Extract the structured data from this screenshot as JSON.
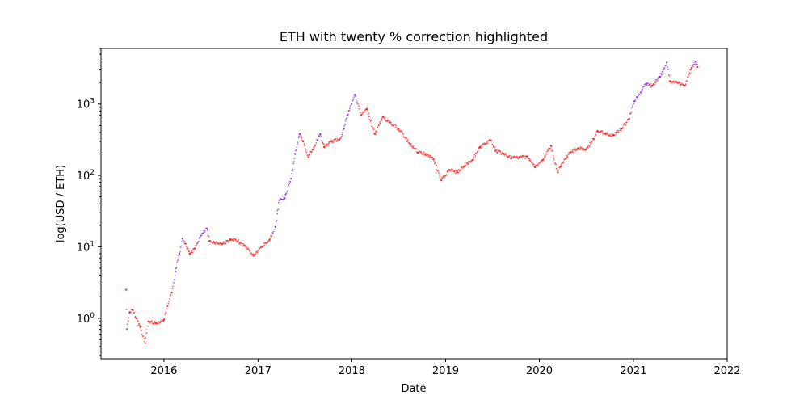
{
  "chart_data": {
    "type": "scatter",
    "title": "ETH with twenty % correction highlighted",
    "xlabel": "Date",
    "ylabel": "log(USD / ETH)",
    "yscale": "log",
    "xlim": [
      "2015-05-01",
      "2022-01-01"
    ],
    "ylim": [
      0.27,
      6000
    ],
    "x_ticks": [
      "2016",
      "2017",
      "2018",
      "2019",
      "2020",
      "2021",
      "2022"
    ],
    "y_ticks": [
      {
        "label": "10",
        "exp": "0",
        "value": 1
      },
      {
        "label": "10",
        "exp": "1",
        "value": 10
      },
      {
        "label": "10",
        "exp": "2",
        "value": 100
      },
      {
        "label": "10",
        "exp": "3",
        "value": 1000
      }
    ],
    "grid": false,
    "legend": "none",
    "colors": {
      "normal": "#ff2020",
      "correction": "#8a2be2"
    },
    "series": [
      {
        "points": [
          [
            "2015-08-07",
            2.5,
            0
          ],
          [
            "2015-08-10",
            0.7,
            0
          ],
          [
            "2015-08-20",
            1.2,
            0
          ],
          [
            "2015-09-01",
            1.3,
            0
          ],
          [
            "2015-09-15",
            1.0,
            0
          ],
          [
            "2015-10-01",
            0.75,
            0
          ],
          [
            "2015-10-20",
            0.45,
            0
          ],
          [
            "2015-11-01",
            0.9,
            0
          ],
          [
            "2015-12-01",
            0.85,
            0
          ],
          [
            "2016-01-01",
            0.95,
            0
          ],
          [
            "2016-02-01",
            2.3,
            0
          ],
          [
            "2016-02-15",
            4.5,
            1
          ],
          [
            "2016-03-01",
            8.0,
            1
          ],
          [
            "2016-03-13",
            13.0,
            1
          ],
          [
            "2016-03-25",
            11.0,
            0
          ],
          [
            "2016-04-10",
            8.0,
            0
          ],
          [
            "2016-05-01",
            9.5,
            0
          ],
          [
            "2016-05-20",
            13.5,
            1
          ],
          [
            "2016-06-16",
            18.0,
            1
          ],
          [
            "2016-06-25",
            12.0,
            0
          ],
          [
            "2016-07-15",
            11.5,
            0
          ],
          [
            "2016-08-15",
            11.0,
            0
          ],
          [
            "2016-09-15",
            12.5,
            0
          ],
          [
            "2016-10-15",
            12.0,
            0
          ],
          [
            "2016-11-15",
            10.0,
            0
          ],
          [
            "2016-12-15",
            7.5,
            0
          ],
          [
            "2017-01-15",
            10.0,
            0
          ],
          [
            "2017-02-15",
            12.5,
            0
          ],
          [
            "2017-03-10",
            19.0,
            1
          ],
          [
            "2017-03-25",
            45.0,
            1
          ],
          [
            "2017-04-15",
            48.0,
            1
          ],
          [
            "2017-05-10",
            90.0,
            1
          ],
          [
            "2017-05-25",
            200.0,
            1
          ],
          [
            "2017-06-12",
            380.0,
            1
          ],
          [
            "2017-06-25",
            300.0,
            0
          ],
          [
            "2017-07-16",
            180.0,
            0
          ],
          [
            "2017-08-01",
            230.0,
            0
          ],
          [
            "2017-08-31",
            380.0,
            1
          ],
          [
            "2017-09-15",
            250.0,
            0
          ],
          [
            "2017-10-15",
            300.0,
            0
          ],
          [
            "2017-11-15",
            320.0,
            0
          ],
          [
            "2017-12-01",
            450.0,
            1
          ],
          [
            "2017-12-15",
            700.0,
            1
          ],
          [
            "2018-01-13",
            1350.0,
            1
          ],
          [
            "2018-02-06",
            700.0,
            0
          ],
          [
            "2018-03-01",
            850.0,
            0
          ],
          [
            "2018-04-01",
            380.0,
            0
          ],
          [
            "2018-05-01",
            650.0,
            0
          ],
          [
            "2018-06-01",
            550.0,
            0
          ],
          [
            "2018-07-01",
            450.0,
            0
          ],
          [
            "2018-08-15",
            280.0,
            0
          ],
          [
            "2018-09-15",
            210.0,
            0
          ],
          [
            "2018-10-15",
            200.0,
            0
          ],
          [
            "2018-11-15",
            170.0,
            0
          ],
          [
            "2018-12-15",
            85.0,
            0
          ],
          [
            "2019-01-15",
            120.0,
            0
          ],
          [
            "2019-02-15",
            110.0,
            0
          ],
          [
            "2019-03-15",
            135.0,
            0
          ],
          [
            "2019-04-15",
            165.0,
            0
          ],
          [
            "2019-05-15",
            250.0,
            0
          ],
          [
            "2019-06-26",
            310.0,
            0
          ],
          [
            "2019-07-15",
            220.0,
            0
          ],
          [
            "2019-08-15",
            200.0,
            0
          ],
          [
            "2019-09-15",
            175.0,
            0
          ],
          [
            "2019-10-15",
            180.0,
            0
          ],
          [
            "2019-11-15",
            185.0,
            0
          ],
          [
            "2019-12-15",
            130.0,
            0
          ],
          [
            "2020-01-15",
            165.0,
            0
          ],
          [
            "2020-02-15",
            260.0,
            0
          ],
          [
            "2020-03-12",
            110.0,
            0
          ],
          [
            "2020-03-25",
            135.0,
            0
          ],
          [
            "2020-04-30",
            210.0,
            0
          ],
          [
            "2020-05-30",
            240.0,
            0
          ],
          [
            "2020-06-30",
            230.0,
            0
          ],
          [
            "2020-07-30",
            320.0,
            0
          ],
          [
            "2020-08-15",
            420.0,
            0
          ],
          [
            "2020-09-15",
            380.0,
            0
          ],
          [
            "2020-10-15",
            370.0,
            0
          ],
          [
            "2020-11-15",
            450.0,
            0
          ],
          [
            "2020-12-15",
            620.0,
            0
          ],
          [
            "2021-01-05",
            1100.0,
            1
          ],
          [
            "2021-02-19",
            1900.0,
            1
          ],
          [
            "2021-03-15",
            1800.0,
            0
          ],
          [
            "2021-04-15",
            2400.0,
            1
          ],
          [
            "2021-05-11",
            3800.0,
            1
          ],
          [
            "2021-05-23",
            2100.0,
            0
          ],
          [
            "2021-06-20",
            2000.0,
            0
          ],
          [
            "2021-07-20",
            1800.0,
            0
          ],
          [
            "2021-08-15",
            3200.0,
            0
          ],
          [
            "2021-09-02",
            3900.0,
            1
          ],
          [
            "2021-09-08",
            3300.0,
            0
          ]
        ]
      }
    ]
  }
}
